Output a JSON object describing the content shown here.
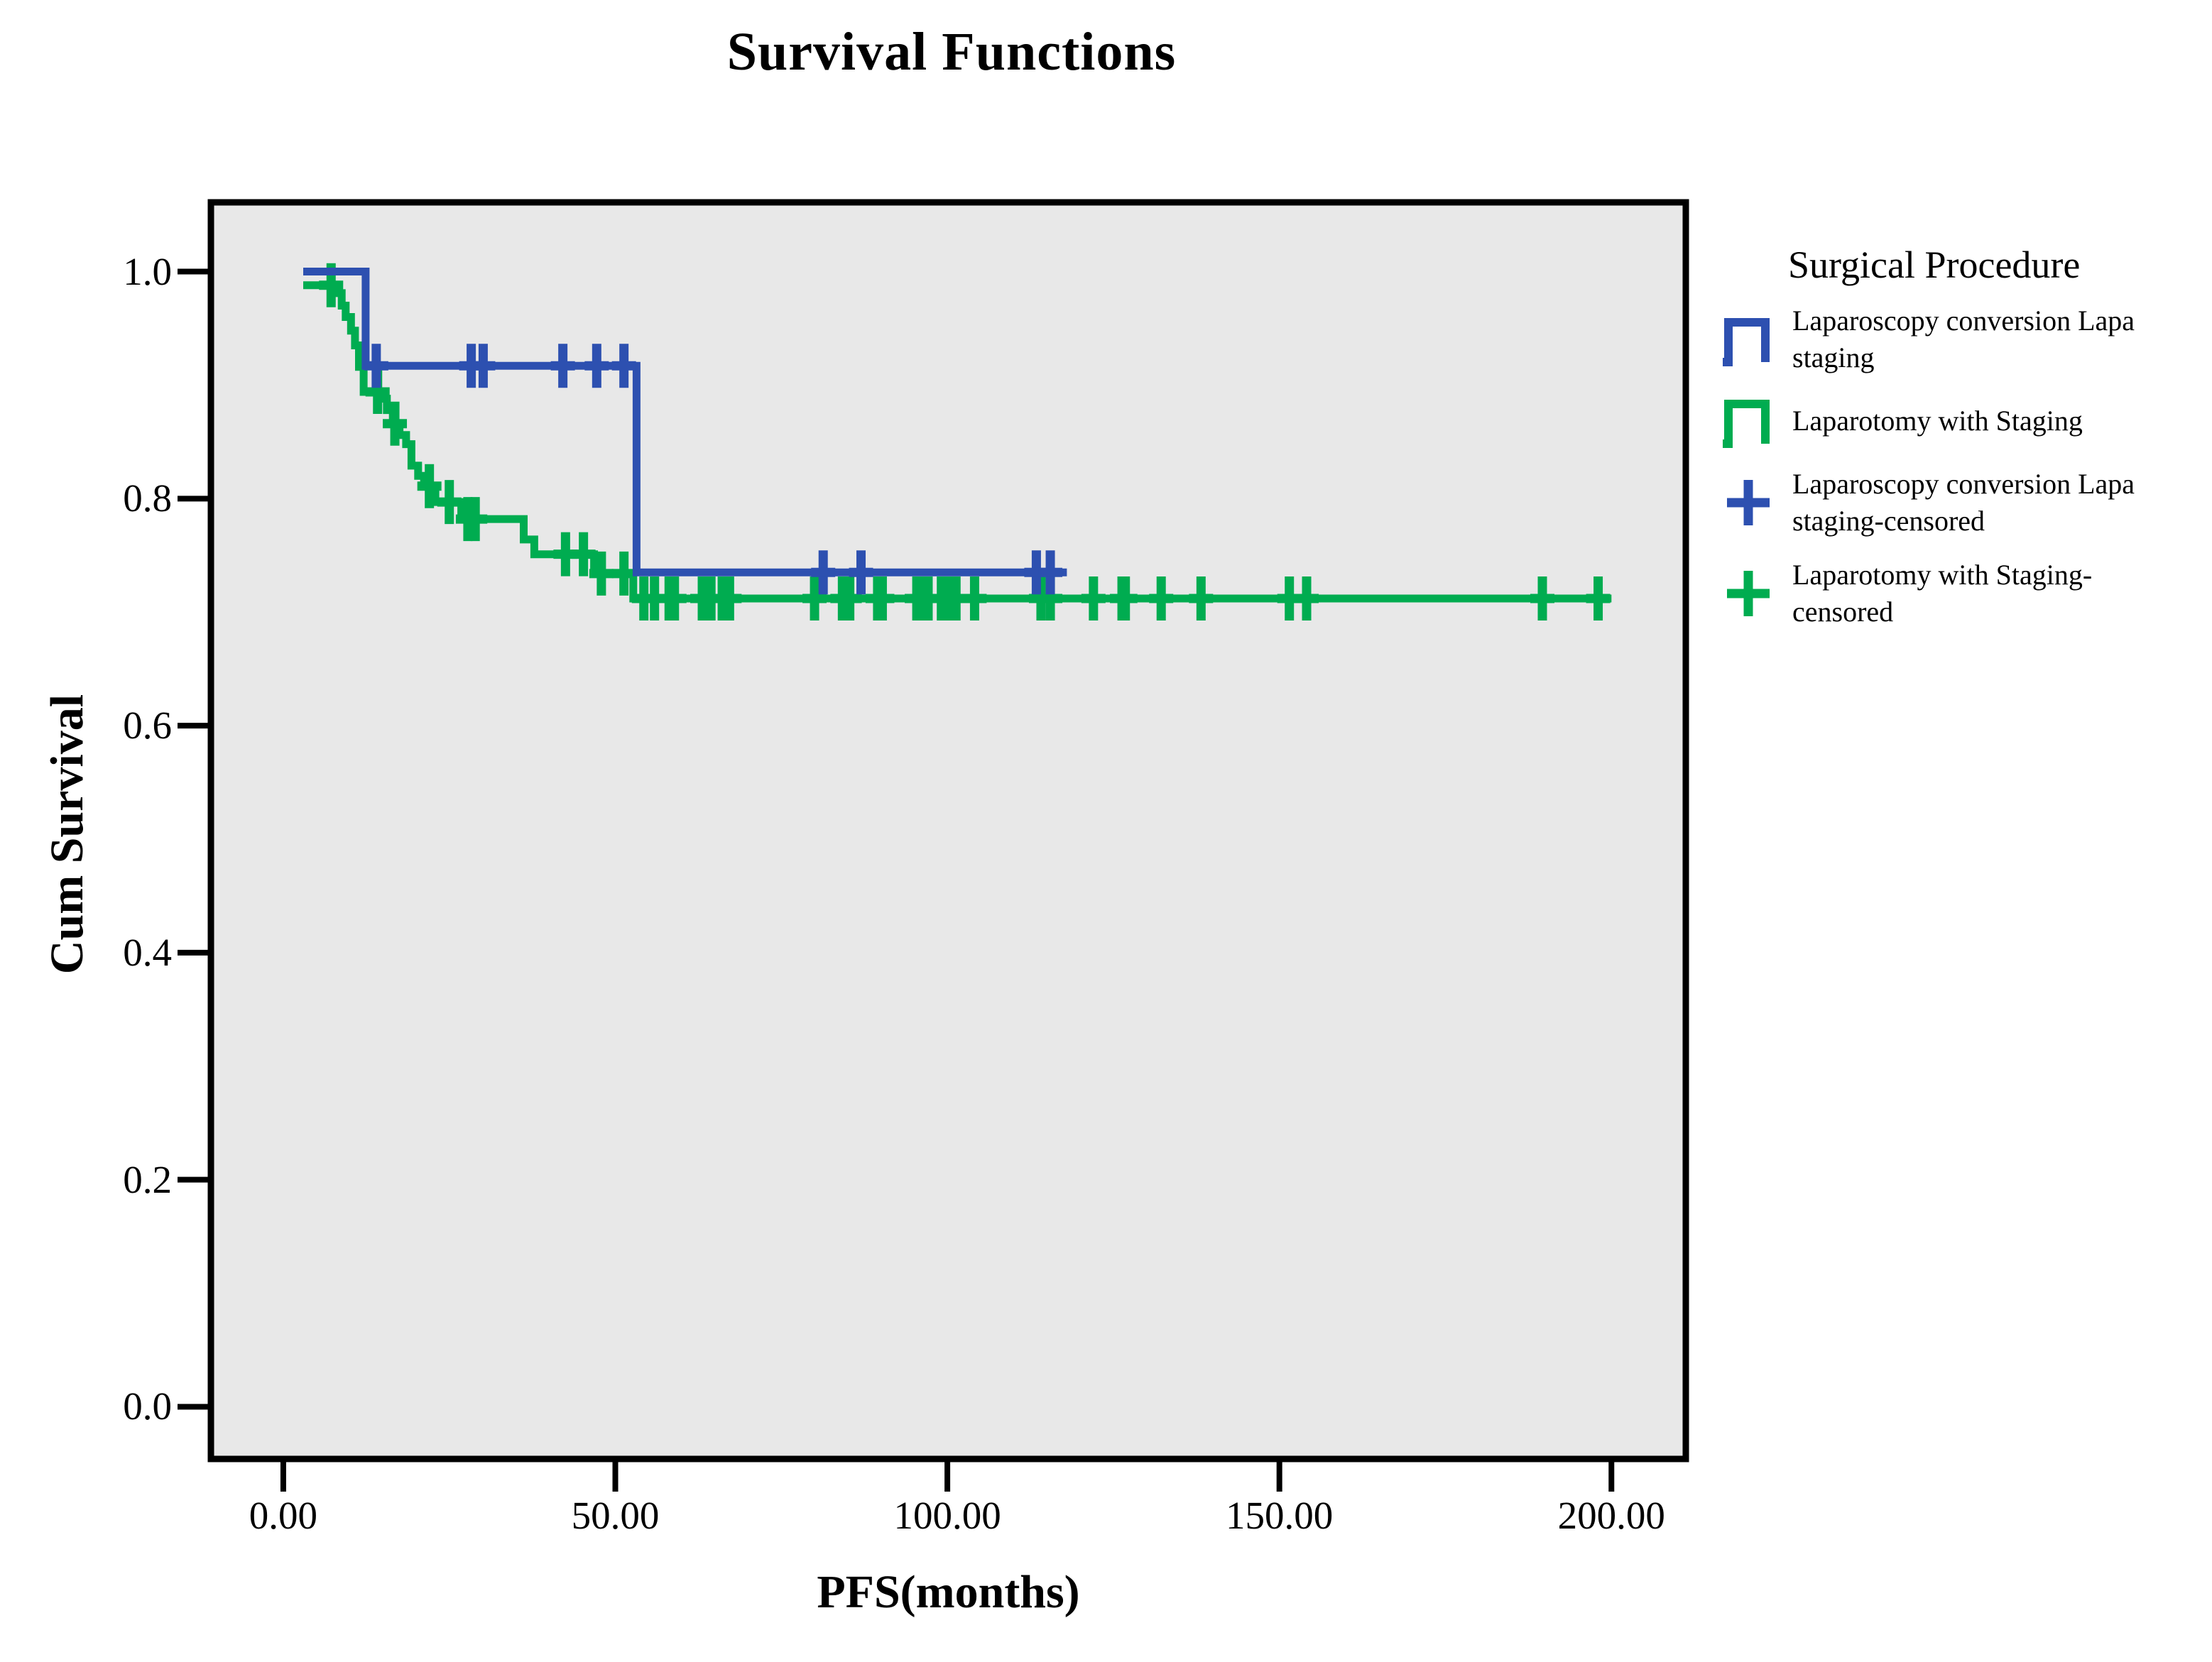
{
  "legend": {
    "title": "Surgical Procedure",
    "items": [
      {
        "label": "Laparoscopy conversion Lapa staging",
        "symbol": "step",
        "color": "#2D50B0"
      },
      {
        "label": "Laparotomy with Staging",
        "symbol": "step",
        "color": "#00AC50"
      },
      {
        "label": "Laparoscopy conversion Lapa staging-censored",
        "symbol": "plus",
        "color": "#2D50B0"
      },
      {
        "label": "Laparotomy with Staging-censored",
        "symbol": "plus",
        "color": "#00AC50"
      }
    ]
  },
  "colors": {
    "blue": "#2D50B0",
    "green": "#00AC50",
    "plot_background": "#E8E8E8",
    "plot_border": "#000000"
  },
  "chart_data": {
    "type": "line",
    "subtype": "kaplan_meier_step",
    "title": "Survival Functions",
    "xlabel": "PFS(months)",
    "ylabel": "Cum Survival",
    "xlim": [
      -10.9,
      211.2
    ],
    "ylim": [
      -0.046,
      1.061
    ],
    "grid": false,
    "legend_position": "right",
    "x_ticks": [
      {
        "value": 0,
        "label": "0.00"
      },
      {
        "value": 50,
        "label": "50.00"
      },
      {
        "value": 100,
        "label": "100.00"
      },
      {
        "value": 150,
        "label": "150.00"
      },
      {
        "value": 200,
        "label": "200.00"
      }
    ],
    "y_ticks": [
      {
        "value": 1.0,
        "label": "1.0"
      },
      {
        "value": 0.8,
        "label": "0.8"
      },
      {
        "value": 0.6,
        "label": "0.6"
      },
      {
        "value": 0.4,
        "label": "0.4"
      },
      {
        "value": 0.2,
        "label": "0.2"
      },
      {
        "value": 0.0,
        "label": "0.0"
      }
    ],
    "series": [
      {
        "name": "Laparotomy with Staging",
        "color": "#00AC50",
        "steps": [
          [
            3.0,
            0.988
          ],
          [
            7.9,
            0.981
          ],
          [
            8.8,
            0.97
          ],
          [
            9.4,
            0.96
          ],
          [
            10.2,
            0.948
          ],
          [
            10.8,
            0.935
          ],
          [
            11.4,
            0.916
          ],
          [
            12.1,
            0.894
          ],
          [
            14.6,
            0.888
          ],
          [
            15.6,
            0.878
          ],
          [
            16.5,
            0.866
          ],
          [
            17.5,
            0.856
          ],
          [
            18.5,
            0.848
          ],
          [
            19.3,
            0.829
          ],
          [
            20.3,
            0.82
          ],
          [
            21.2,
            0.811
          ],
          [
            22.9,
            0.797
          ],
          [
            26.8,
            0.782
          ],
          [
            36.2,
            0.764
          ],
          [
            37.8,
            0.751
          ],
          [
            46.8,
            0.734
          ],
          [
            52.7,
            0.712
          ]
        ],
        "end_x": 200,
        "censored": [
          [
            7.2,
            0.988
          ],
          [
            14.2,
            0.894
          ],
          [
            16.8,
            0.866
          ],
          [
            22.0,
            0.811
          ],
          [
            25.0,
            0.797
          ],
          [
            27.8,
            0.782
          ],
          [
            28.9,
            0.782
          ],
          [
            42.5,
            0.751
          ],
          [
            45.2,
            0.751
          ],
          [
            47.9,
            0.734
          ],
          [
            51.3,
            0.734
          ],
          [
            54.3,
            0.712
          ],
          [
            55.9,
            0.712
          ],
          [
            58.1,
            0.712
          ],
          [
            58.9,
            0.712
          ],
          [
            63.1,
            0.712
          ],
          [
            64.4,
            0.712
          ],
          [
            66.1,
            0.712
          ],
          [
            67.2,
            0.712
          ],
          [
            80.0,
            0.712
          ],
          [
            84.2,
            0.712
          ],
          [
            85.3,
            0.712
          ],
          [
            89.5,
            0.712
          ],
          [
            90.2,
            0.712
          ],
          [
            95.4,
            0.712
          ],
          [
            96.5,
            0.712
          ],
          [
            97.1,
            0.712
          ],
          [
            99.1,
            0.712
          ],
          [
            100.2,
            0.712
          ],
          [
            101.3,
            0.712
          ],
          [
            104.1,
            0.712
          ],
          [
            114.1,
            0.712
          ],
          [
            115.5,
            0.712
          ],
          [
            122.0,
            0.712
          ],
          [
            126.3,
            0.712
          ],
          [
            126.8,
            0.712
          ],
          [
            132.2,
            0.712
          ],
          [
            138.2,
            0.712
          ],
          [
            151.5,
            0.712
          ],
          [
            154.1,
            0.712
          ],
          [
            189.6,
            0.712
          ],
          [
            198.0,
            0.712
          ]
        ]
      },
      {
        "name": "Laparoscopy conversion Lapa staging",
        "color": "#2D50B0",
        "steps": [
          [
            3.0,
            1.0
          ],
          [
            12.4,
            0.917
          ],
          [
            53.2,
            0.735
          ]
        ],
        "end_x": 118,
        "censored": [
          [
            14.0,
            0.917
          ],
          [
            28.3,
            0.917
          ],
          [
            30.1,
            0.917
          ],
          [
            42.1,
            0.917
          ],
          [
            47.2,
            0.917
          ],
          [
            51.3,
            0.917
          ],
          [
            81.3,
            0.735
          ],
          [
            87.0,
            0.735
          ],
          [
            113.4,
            0.735
          ],
          [
            115.5,
            0.735
          ]
        ]
      }
    ]
  }
}
